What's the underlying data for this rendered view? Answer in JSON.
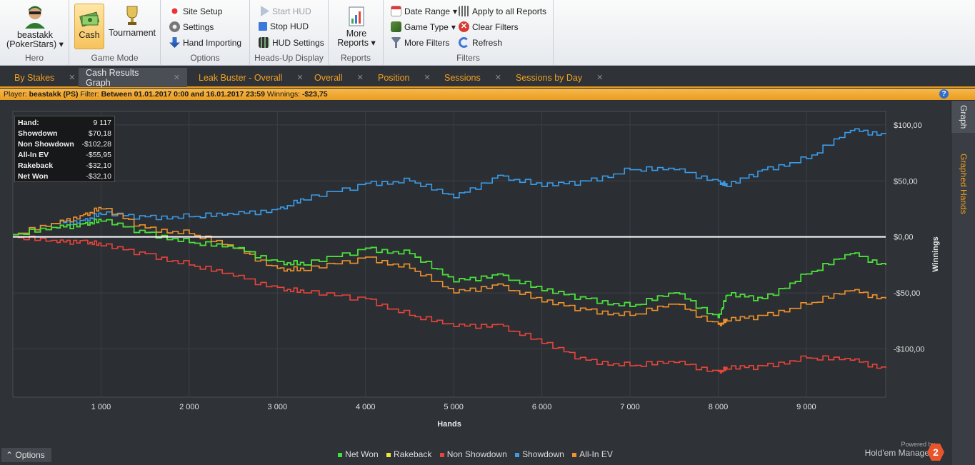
{
  "ribbon": {
    "hero": {
      "name": "beastakk",
      "site": "(PokerStars)",
      "group_label": "Hero"
    },
    "game_mode": {
      "cash": "Cash",
      "tournament": "Tournament",
      "group_label": "Game Mode"
    },
    "options": {
      "site_setup": "Site Setup",
      "settings": "Settings",
      "hand_importing": "Hand Importing",
      "group_label": "Options"
    },
    "hud": {
      "start": "Start HUD",
      "stop": "Stop HUD",
      "settings": "HUD Settings",
      "group_label": "Heads-Up Display"
    },
    "reports": {
      "more_1": "More",
      "more_2": "Reports",
      "group_label": "Reports"
    },
    "filters": {
      "date_range": "Date Range",
      "game_type": "Game Type",
      "more_filters": "More Filters",
      "apply_all": "Apply to all Reports",
      "clear": "Clear Filters",
      "refresh": "Refresh",
      "group_label": "Filters"
    }
  },
  "tabs": [
    {
      "label": "By Stakes",
      "active": false
    },
    {
      "label": "Cash Results Graph",
      "active": true
    },
    {
      "label": "Leak Buster - Overall",
      "active": false
    },
    {
      "label": "Overall",
      "active": false
    },
    {
      "label": "Position",
      "active": false
    },
    {
      "label": "Sessions",
      "active": false
    },
    {
      "label": "Sessions by Day",
      "active": false
    }
  ],
  "filter_bar": {
    "player_label": "Player:",
    "player": "beastakk (PS)",
    "filter_label": "Filter:",
    "filter": "Between 01.01.2017 0:00 and 16.01.2017 23:59",
    "winnings_label": "Winnings:",
    "winnings": "-$23,75"
  },
  "side_tabs": {
    "graph": "Graph",
    "graphed_hands": "Graphed Hands"
  },
  "infobox": [
    {
      "k": "Hand:",
      "v": "9 117"
    },
    {
      "k": "Showdown",
      "v": "$70,18"
    },
    {
      "k": "Non Showdown",
      "v": "-$102,28"
    },
    {
      "k": "All-In EV",
      "v": "-$55,95"
    },
    {
      "k": "Rakeback",
      "v": "-$32,10"
    },
    {
      "k": "Net Won",
      "v": "-$32,10"
    }
  ],
  "options_label": "Options",
  "brand": {
    "powered": "Powered by",
    "name": "Hold'em Manager",
    "version": "2"
  },
  "colors": {
    "net_won": "#3de23a",
    "rakeback": "#e8e83a",
    "non_showdown": "#e8443a",
    "showdown": "#3a9be8",
    "allin_ev": "#f0922a",
    "zero_line": "#ffffff"
  },
  "chart_data": {
    "type": "line",
    "xlabel": "Hands",
    "ylabel": "Winnings",
    "xlim": [
      0,
      9900
    ],
    "ylim": [
      -143,
      112
    ],
    "x_ticks": [
      {
        "v": 1000,
        "label": "1 000"
      },
      {
        "v": 2000,
        "label": "2 000"
      },
      {
        "v": 3000,
        "label": "3 000"
      },
      {
        "v": 4000,
        "label": "4 000"
      },
      {
        "v": 5000,
        "label": "5 000"
      },
      {
        "v": 6000,
        "label": "6 000"
      },
      {
        "v": 7000,
        "label": "7 000"
      },
      {
        "v": 8000,
        "label": "8 000"
      },
      {
        "v": 9000,
        "label": "9 000"
      }
    ],
    "y_ticks": [
      {
        "v": 100,
        "label": "$100,00"
      },
      {
        "v": 50,
        "label": "$50,00"
      },
      {
        "v": 0,
        "label": "$0,00"
      },
      {
        "v": -50,
        "label": "-$50,00"
      },
      {
        "v": -100,
        "label": "-$100,00"
      }
    ],
    "x": [
      0,
      500,
      800,
      1000,
      1500,
      2000,
      2500,
      3000,
      3300,
      4000,
      4500,
      5000,
      5500,
      6000,
      6500,
      7000,
      7500,
      8000,
      8100,
      8500,
      9000,
      9500,
      9900
    ],
    "series": [
      {
        "name": "Net Won",
        "color": "#3de23a",
        "values": [
          2,
          8,
          12,
          14,
          4,
          -5,
          -10,
          -22,
          -25,
          -10,
          -15,
          -40,
          -33,
          -48,
          -55,
          -62,
          -50,
          -72,
          -52,
          -55,
          -33,
          -15,
          -25
        ]
      },
      {
        "name": "Rakeback",
        "color": "#e8e83a",
        "values": [
          2,
          8,
          12,
          14,
          4,
          -5,
          -10,
          -22,
          -25,
          -10,
          -15,
          -40,
          -33,
          -48,
          -55,
          -62,
          -50,
          -72,
          -52,
          -55,
          -33,
          -15,
          -25
        ]
      },
      {
        "name": "Non Showdown",
        "color": "#e8443a",
        "values": [
          0,
          -5,
          -3,
          -8,
          -15,
          -25,
          -35,
          -45,
          -50,
          -55,
          -70,
          -80,
          -78,
          -95,
          -110,
          -115,
          -112,
          -120,
          -118,
          -115,
          -108,
          -110,
          -117
        ]
      },
      {
        "name": "Showdown",
        "color": "#3a9be8",
        "values": [
          2,
          12,
          15,
          20,
          18,
          18,
          20,
          25,
          33,
          48,
          50,
          35,
          55,
          45,
          50,
          60,
          60,
          50,
          45,
          60,
          70,
          95,
          92
        ]
      },
      {
        "name": "All-In EV",
        "color": "#f0922a",
        "values": [
          2,
          12,
          20,
          25,
          8,
          3,
          -10,
          -28,
          -30,
          -18,
          -28,
          -50,
          -42,
          -58,
          -65,
          -70,
          -60,
          -78,
          -75,
          -70,
          -60,
          -48,
          -55
        ]
      }
    ]
  }
}
